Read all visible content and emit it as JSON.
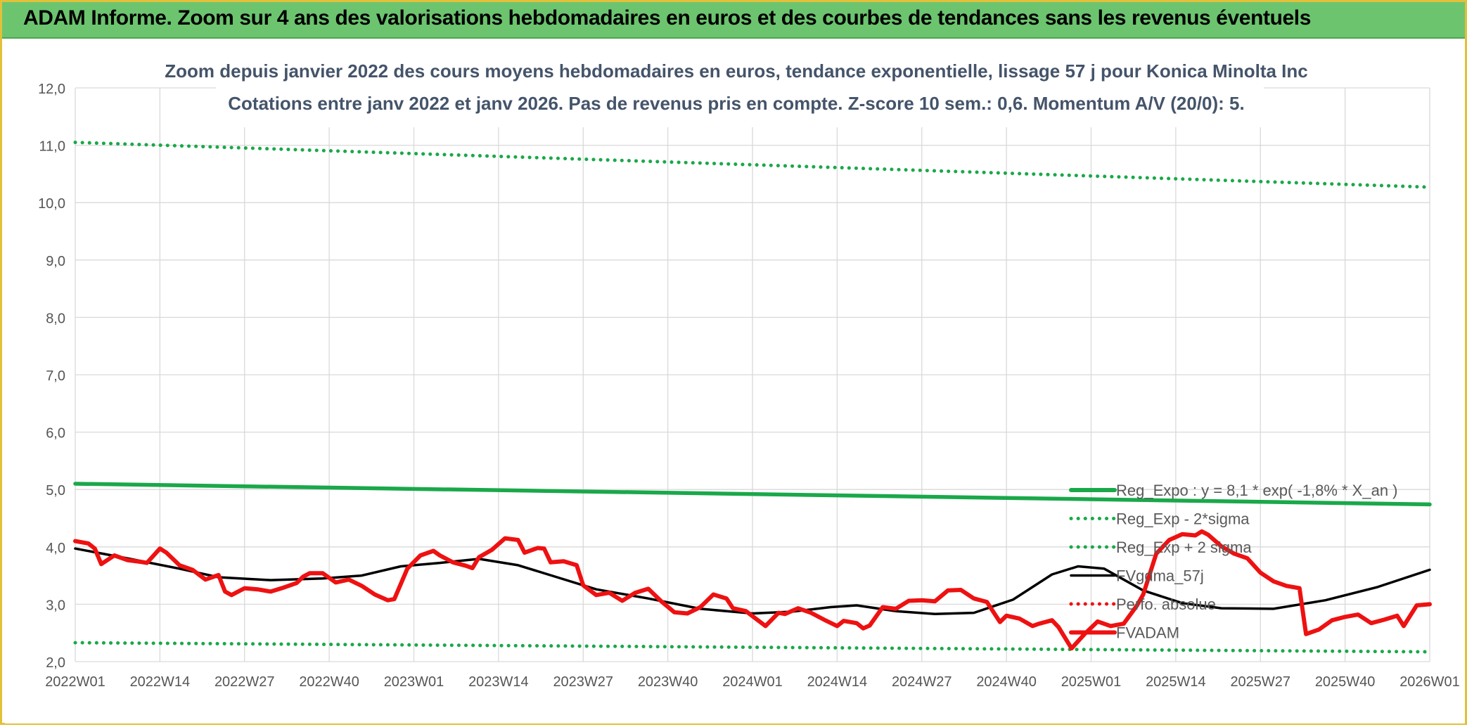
{
  "banner": {
    "title": "ADAM Informe. Zoom sur 4 ans des valorisations hebdomadaires en euros et des courbes de tendances sans les revenus éventuels"
  },
  "colors": {
    "regression": "#1aa84a",
    "sigma": "#1aa84a",
    "smoothed": "#000000",
    "price": "#ee1111",
    "perf": "#ee1111",
    "banner": "#6cc46f",
    "frame": "#e3c03a"
  },
  "chart_data": {
    "type": "line",
    "title_line1": "Zoom depuis janvier 2022 des cours moyens hebdomadaires en euros, tendance exponentielle, lissage 57 j pour Konica Minolta Inc",
    "title_line2": "Cotations entre janv 2022 et janv 2026. Pas de revenus pris en compte. Z-score 10 sem.: 0,6. Momentum A/V (20/0): 5.",
    "ylim": [
      2,
      12
    ],
    "y_ticks": [
      "2,0",
      "3,0",
      "4,0",
      "5,0",
      "6,0",
      "7,0",
      "8,0",
      "9,0",
      "10,0",
      "11,0",
      "12,0"
    ],
    "x_range": [
      0,
      208
    ],
    "x_ticks": [
      {
        "label": "2022W01",
        "x": 0
      },
      {
        "label": "2022W14",
        "x": 13
      },
      {
        "label": "2022W27",
        "x": 26
      },
      {
        "label": "2022W40",
        "x": 39
      },
      {
        "label": "2023W01",
        "x": 52
      },
      {
        "label": "2023W14",
        "x": 65
      },
      {
        "label": "2023W27",
        "x": 78
      },
      {
        "label": "2023W40",
        "x": 91
      },
      {
        "label": "2024W01",
        "x": 104
      },
      {
        "label": "2024W14",
        "x": 117
      },
      {
        "label": "2024W27",
        "x": 130
      },
      {
        "label": "2024W40",
        "x": 143
      },
      {
        "label": "2025W01",
        "x": 156
      },
      {
        "label": "2025W14",
        "x": 169
      },
      {
        "label": "2025W27",
        "x": 182
      },
      {
        "label": "2025W40",
        "x": 195
      },
      {
        "label": "2026W01",
        "x": 208
      }
    ],
    "series": [
      {
        "name": "Reg_Expo : y = 8,1 * exp( -1,8% *  X_an )",
        "style": "solid-thick",
        "color": "#1aa84a",
        "points": [
          [
            0,
            5.1
          ],
          [
            208,
            4.74
          ]
        ]
      },
      {
        "name": "Reg_Exp - 2*sigma",
        "style": "dotted",
        "color": "#1aa84a",
        "points": [
          [
            0,
            2.33
          ],
          [
            208,
            2.17
          ]
        ]
      },
      {
        "name": "Reg_Exp + 2 sigma",
        "style": "dotted",
        "color": "#1aa84a",
        "points": [
          [
            0,
            11.05
          ],
          [
            208,
            10.27
          ]
        ]
      },
      {
        "name": "FVgdma_57j",
        "style": "solid",
        "color": "#000000",
        "points": [
          [
            0,
            3.97
          ],
          [
            8,
            3.8
          ],
          [
            16,
            3.62
          ],
          [
            22,
            3.47
          ],
          [
            30,
            3.42
          ],
          [
            38,
            3.45
          ],
          [
            44,
            3.5
          ],
          [
            50,
            3.66
          ],
          [
            56,
            3.72
          ],
          [
            62,
            3.79
          ],
          [
            68,
            3.68
          ],
          [
            74,
            3.47
          ],
          [
            80,
            3.26
          ],
          [
            88,
            3.1
          ],
          [
            96,
            2.92
          ],
          [
            104,
            2.84
          ],
          [
            110,
            2.87
          ],
          [
            116,
            2.95
          ],
          [
            120,
            2.98
          ],
          [
            126,
            2.88
          ],
          [
            132,
            2.83
          ],
          [
            138,
            2.85
          ],
          [
            144,
            3.08
          ],
          [
            150,
            3.52
          ],
          [
            154,
            3.66
          ],
          [
            158,
            3.62
          ],
          [
            164,
            3.24
          ],
          [
            170,
            3.02
          ],
          [
            176,
            2.93
          ],
          [
            184,
            2.92
          ],
          [
            192,
            3.07
          ],
          [
            200,
            3.3
          ],
          [
            208,
            3.6
          ]
        ]
      },
      {
        "name": "Perfo. absolue",
        "style": "dotted",
        "color": "#ee1111",
        "points": []
      },
      {
        "name": "FVADAM",
        "style": "solid-thick",
        "color": "#ee1111",
        "points": [
          [
            0,
            4.1
          ],
          [
            2,
            4.06
          ],
          [
            3,
            3.97
          ],
          [
            4,
            3.7
          ],
          [
            6,
            3.85
          ],
          [
            8,
            3.77
          ],
          [
            10,
            3.74
          ],
          [
            11,
            3.72
          ],
          [
            13,
            3.97
          ],
          [
            14,
            3.9
          ],
          [
            16,
            3.68
          ],
          [
            18,
            3.6
          ],
          [
            20,
            3.43
          ],
          [
            22,
            3.51
          ],
          [
            23,
            3.22
          ],
          [
            24,
            3.16
          ],
          [
            26,
            3.28
          ],
          [
            28,
            3.26
          ],
          [
            30,
            3.22
          ],
          [
            32,
            3.29
          ],
          [
            34,
            3.37
          ],
          [
            35,
            3.48
          ],
          [
            36,
            3.54
          ],
          [
            38,
            3.54
          ],
          [
            40,
            3.38
          ],
          [
            42,
            3.43
          ],
          [
            44,
            3.32
          ],
          [
            46,
            3.17
          ],
          [
            48,
            3.07
          ],
          [
            49,
            3.09
          ],
          [
            51,
            3.62
          ],
          [
            53,
            3.85
          ],
          [
            55,
            3.93
          ],
          [
            56,
            3.85
          ],
          [
            58,
            3.73
          ],
          [
            60,
            3.67
          ],
          [
            61,
            3.63
          ],
          [
            62,
            3.82
          ],
          [
            64,
            3.95
          ],
          [
            66,
            4.15
          ],
          [
            68,
            4.12
          ],
          [
            69,
            3.9
          ],
          [
            71,
            3.98
          ],
          [
            72,
            3.97
          ],
          [
            73,
            3.73
          ],
          [
            75,
            3.75
          ],
          [
            77,
            3.68
          ],
          [
            78,
            3.33
          ],
          [
            80,
            3.16
          ],
          [
            82,
            3.2
          ],
          [
            84,
            3.06
          ],
          [
            86,
            3.2
          ],
          [
            88,
            3.27
          ],
          [
            90,
            3.05
          ],
          [
            92,
            2.86
          ],
          [
            94,
            2.84
          ],
          [
            96,
            2.95
          ],
          [
            98,
            3.17
          ],
          [
            100,
            3.1
          ],
          [
            101,
            2.93
          ],
          [
            103,
            2.88
          ],
          [
            106,
            2.62
          ],
          [
            108,
            2.85
          ],
          [
            109,
            2.83
          ],
          [
            111,
            2.93
          ],
          [
            113,
            2.85
          ],
          [
            115,
            2.73
          ],
          [
            117,
            2.62
          ],
          [
            118,
            2.71
          ],
          [
            120,
            2.67
          ],
          [
            121,
            2.58
          ],
          [
            122,
            2.63
          ],
          [
            124,
            2.95
          ],
          [
            126,
            2.92
          ],
          [
            128,
            3.06
          ],
          [
            130,
            3.07
          ],
          [
            132,
            3.05
          ],
          [
            134,
            3.24
          ],
          [
            136,
            3.25
          ],
          [
            138,
            3.1
          ],
          [
            140,
            3.04
          ],
          [
            142,
            2.69
          ],
          [
            143,
            2.8
          ],
          [
            145,
            2.75
          ],
          [
            147,
            2.62
          ],
          [
            148,
            2.66
          ],
          [
            150,
            2.72
          ],
          [
            151,
            2.6
          ],
          [
            153,
            2.23
          ],
          [
            155,
            2.48
          ],
          [
            157,
            2.7
          ],
          [
            159,
            2.62
          ],
          [
            161,
            2.66
          ],
          [
            163,
            2.97
          ],
          [
            164,
            3.17
          ],
          [
            166,
            3.88
          ],
          [
            168,
            4.12
          ],
          [
            170,
            4.22
          ],
          [
            172,
            4.2
          ],
          [
            173,
            4.27
          ],
          [
            174,
            4.21
          ],
          [
            176,
            4.01
          ],
          [
            178,
            3.88
          ],
          [
            180,
            3.8
          ],
          [
            182,
            3.55
          ],
          [
            184,
            3.4
          ],
          [
            186,
            3.32
          ],
          [
            188,
            3.28
          ],
          [
            189,
            2.48
          ],
          [
            191,
            2.56
          ],
          [
            193,
            2.72
          ],
          [
            195,
            2.78
          ],
          [
            197,
            2.82
          ],
          [
            199,
            2.67
          ],
          [
            201,
            2.73
          ],
          [
            203,
            2.8
          ],
          [
            204,
            2.62
          ],
          [
            206,
            2.98
          ],
          [
            208,
            3.0
          ]
        ]
      }
    ],
    "legend_position": "right, lower-middle"
  }
}
